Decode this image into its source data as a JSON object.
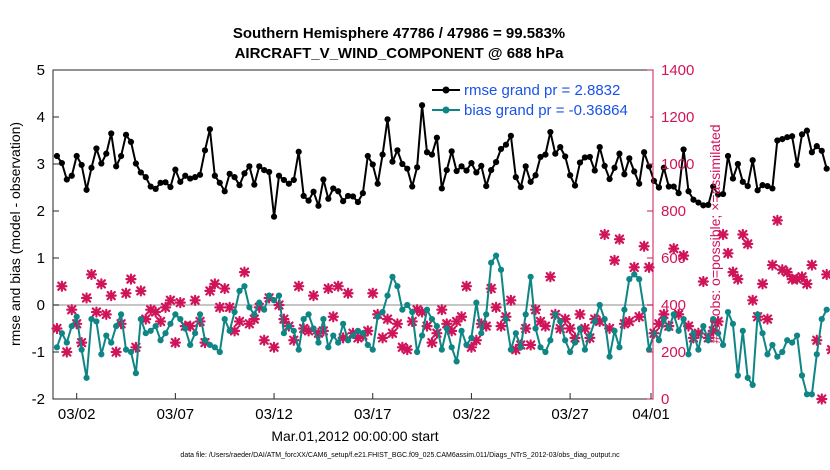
{
  "chart_data": {
    "type": "line",
    "title": "Southern Hemisphere 47786 / 47986 = 99.583%",
    "subtitle": "AIRCRAFT_V_WIND_COMPONENT @ 688 hPa",
    "xlabel": "Mar.01,2012 00:00:00 start",
    "ylabel": "rmse and bias (model - observation)",
    "y2label": "# of obs: o=possible; ×=assimilated",
    "xlim": [
      0.8,
      31.2
    ],
    "ylim": [
      -2,
      5
    ],
    "y2lim": [
      0,
      1400
    ],
    "xticks": [
      {
        "x": 2,
        "label": "03/02"
      },
      {
        "x": 7,
        "label": "03/07"
      },
      {
        "x": 12,
        "label": "03/12"
      },
      {
        "x": 17,
        "label": "03/17"
      },
      {
        "x": 22,
        "label": "03/22"
      },
      {
        "x": 27,
        "label": "03/27"
      },
      {
        "x": 32,
        "label": "04/01"
      }
    ],
    "yticks": [
      "-2",
      "-1",
      "0",
      "1",
      "2",
      "3",
      "4",
      "5"
    ],
    "y2ticks": [
      "0",
      "200",
      "400",
      "600",
      "800",
      "1000",
      "1200",
      "1400"
    ],
    "zero_line": true,
    "legend": {
      "position": "top-right",
      "entries": [
        "rmse grand pr = 2.8832",
        "bias grand pr = -0.36864"
      ]
    },
    "footer": "data file: /Users/raeder/DAI/ATM_forcXX/CAM6_setup/f.e21.FHIST_BGC.f09_025.CAM6assim.011/Diags_NTrS_2012-03/obs_diag_output.nc",
    "colors": {
      "rmse": "#000000",
      "bias": "#0f8585",
      "obs": "#d0145a",
      "zero": "#b3b3b3"
    },
    "x_start": 1.0,
    "x_step": 0.25,
    "series": [
      {
        "name": "rmse",
        "values": [
          3.17,
          3.02,
          2.67,
          2.75,
          3.17,
          2.98,
          2.45,
          2.92,
          3.33,
          3.01,
          3.22,
          3.65,
          2.95,
          3.17,
          3.62,
          3.47,
          3.01,
          2.82,
          2.72,
          2.52,
          2.47,
          2.6,
          2.61,
          2.51,
          2.88,
          2.62,
          2.75,
          2.69,
          2.72,
          2.77,
          3.29,
          3.74,
          2.75,
          2.6,
          2.42,
          2.79,
          2.72,
          2.55,
          2.8,
          2.95,
          2.56,
          2.95,
          2.87,
          2.83,
          1.88,
          2.75,
          2.66,
          2.58,
          2.66,
          3.26,
          2.32,
          2.22,
          2.41,
          2.11,
          2.67,
          2.26,
          2.48,
          2.42,
          2.21,
          2.32,
          2.31,
          2.19,
          2.38,
          3.17,
          2.99,
          2.58,
          3.2,
          3.95,
          3.05,
          3.29,
          3.0,
          2.9,
          2.52,
          2.93,
          4.25,
          3.25,
          3.2,
          3.56,
          2.48,
          2.87,
          3.27,
          2.85,
          2.95,
          2.86,
          3.02,
          2.82,
          2.96,
          2.53,
          2.87,
          3.04,
          3.32,
          3.41,
          3.6,
          2.72,
          2.51,
          2.95,
          2.62,
          2.76,
          3.15,
          3.2,
          3.68,
          3.22,
          3.36,
          3.16,
          2.76,
          2.54,
          3.03,
          3.14,
          3.15,
          2.86,
          3.36,
          2.96,
          2.68,
          2.92,
          3.22,
          2.78,
          3.12,
          2.84,
          2.58,
          3.25,
          2.95,
          2.64,
          2.5,
          2.92,
          2.52,
          2.52,
          2.38,
          3.31,
          2.42,
          2.24,
          2.18,
          2.12,
          2.13,
          2.52,
          2.35,
          2.36,
          3.17,
          2.69,
          3.0,
          2.62,
          2.53,
          3.08,
          2.44,
          2.55,
          2.53,
          2.48,
          3.5,
          3.53,
          3.57,
          3.59,
          2.98,
          3.63,
          3.71,
          3.25,
          3.38,
          3.28,
          2.9
        ]
      },
      {
        "name": "bias",
        "values": [
          -0.9,
          -0.6,
          -0.8,
          -0.45,
          -0.25,
          -0.95,
          -1.55,
          -0.3,
          -0.35,
          -1.05,
          -0.65,
          -0.8,
          -0.45,
          -0.2,
          -0.95,
          -1.0,
          -1.45,
          -0.3,
          -0.6,
          -0.55,
          -0.45,
          -0.75,
          -0.6,
          -0.4,
          -0.2,
          -0.3,
          -0.5,
          -0.85,
          -0.6,
          -0.2,
          -0.75,
          -0.85,
          -0.9,
          -1.0,
          -0.3,
          -0.55,
          -0.15,
          0.3,
          0.4,
          -0.05,
          -0.2,
          0.05,
          -0.1,
          0.2,
          0.1,
          0.2,
          -0.6,
          -0.45,
          -0.55,
          -0.95,
          -0.3,
          -0.2,
          -0.5,
          -0.8,
          -0.3,
          -0.9,
          -0.65,
          -0.8,
          -0.4,
          -0.75,
          -0.65,
          -0.55,
          -0.6,
          -0.85,
          -0.95,
          -0.25,
          -0.15,
          0.2,
          0.6,
          0.4,
          -0.1,
          0.0,
          -0.15,
          -1.0,
          -0.65,
          -0.1,
          -0.3,
          -0.45,
          -0.95,
          -0.5,
          -0.9,
          -1.2,
          -0.55,
          -0.85,
          -0.7,
          0.05,
          -0.6,
          -0.2,
          0.9,
          1.05,
          0.75,
          -0.3,
          -0.95,
          -0.6,
          -0.9,
          -0.2,
          0.6,
          -0.5,
          -0.9,
          -1.0,
          -0.75,
          -0.2,
          -0.35,
          -0.75,
          -1.0,
          -0.8,
          -0.5,
          -0.95,
          -0.65,
          -0.35,
          0.0,
          -0.3,
          -1.1,
          -0.55,
          -0.9,
          -0.1,
          0.55,
          0.65,
          0.55,
          -0.1,
          -0.95,
          -0.6,
          -0.75,
          -0.3,
          -0.5,
          -0.2,
          -0.55,
          -0.3,
          -1.05,
          -0.6,
          -0.95,
          -0.45,
          -0.75,
          -0.3,
          -0.6,
          -0.85,
          -0.15,
          -0.4,
          -1.5,
          -0.55,
          -1.55,
          -1.7,
          -0.2,
          -0.6,
          -1.05,
          -0.85,
          -1.1,
          -1.0,
          -0.75,
          -0.8,
          -0.65,
          -1.5,
          -1.9,
          -1.9,
          -1.05,
          -0.3,
          -0.1
        ]
      },
      {
        "name": "obs_assimilated",
        "values": [
          300,
          480,
          200,
          380,
          320,
          240,
          430,
          530,
          370,
          490,
          360,
          440,
          200,
          320,
          450,
          510,
          220,
          460,
          340,
          380,
          370,
          330,
          390,
          420,
          240,
          410,
          310,
          310,
          420,
          330,
          240,
          460,
          490,
          390,
          470,
          390,
          290,
          330,
          540,
          320,
          340,
          390,
          250,
          430,
          220,
          400,
          340,
          310,
          250,
          480,
          300,
          290,
          440,
          280,
          290,
          470,
          350,
          480,
          260,
          450,
          280,
          260,
          270,
          290,
          450,
          360,
          260,
          340,
          280,
          320,
          220,
          210,
          330,
          380,
          370,
          310,
          240,
          280,
          380,
          320,
          290,
          330,
          350,
          480,
          220,
          250,
          320,
          310,
          470,
          390,
          310,
          350,
          420,
          210,
          230,
          300,
          230,
          380,
          330,
          310,
          520,
          360,
          300,
          340,
          300,
          260,
          360,
          300,
          260,
          340,
          330,
          700,
          300,
          590,
          680,
          320,
          330,
          560,
          350,
          650,
          560,
          280,
          320,
          360,
          310,
          640,
          360,
          610,
          310,
          260,
          280,
          500,
          260,
          290,
          330,
          700,
          620,
          540,
          510,
          700,
          660,
          420,
          350,
          490,
          340,
          570,
          760,
          550,
          540,
          510,
          510,
          520,
          490,
          570,
          250,
          0,
          530,
          210
        ]
      }
    ]
  }
}
